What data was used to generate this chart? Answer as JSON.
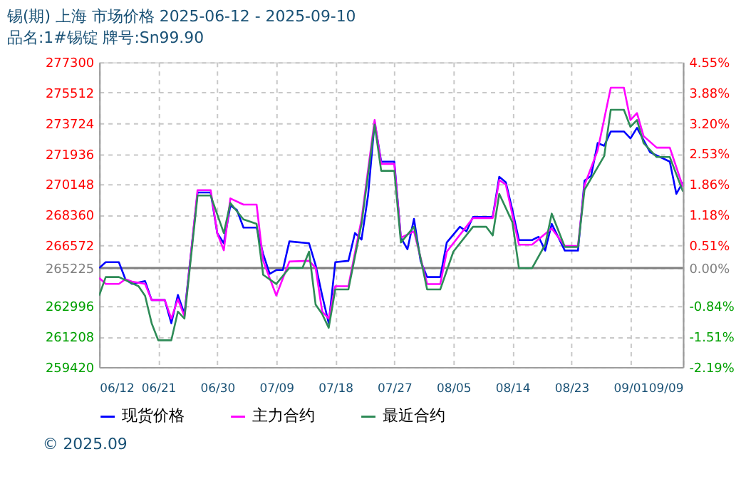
{
  "chart_data": {
    "type": "line",
    "title": "锡(期) 上海 市场价格 2025-06-12 - 2025-09-10",
    "subtitle": "品名:1#锡锭 牌号:Sn99.90",
    "annotations": [
      "© 2025.09"
    ],
    "xlim": [
      "2025-06-12",
      "2025-09-09"
    ],
    "xticks": [
      {
        "value": "2025-06-12",
        "label": "06/12"
      },
      {
        "value": "2025-06-21",
        "label": "06/21"
      },
      {
        "value": "2025-06-30",
        "label": "06/30"
      },
      {
        "value": "2025-07-09",
        "label": "07/09"
      },
      {
        "value": "2025-07-18",
        "label": "07/18"
      },
      {
        "value": "2025-07-27",
        "label": "07/27"
      },
      {
        "value": "2025-08-05",
        "label": "08/05"
      },
      {
        "value": "2025-08-14",
        "label": "08/14"
      },
      {
        "value": "2025-08-23",
        "label": "08/23"
      },
      {
        "value": "2025-09-01",
        "label": "09/01"
      },
      {
        "value": "2025-09-09",
        "label": "09/09"
      }
    ],
    "ylim": [
      259420,
      277300
    ],
    "yticks": [
      259420,
      261208,
      262996,
      265225,
      266572,
      268360,
      270148,
      271936,
      273724,
      275512,
      277300
    ],
    "y2lim": [
      -2.19,
      4.55
    ],
    "y2ticks": [
      {
        "value": -2.19,
        "label": "-2.19%"
      },
      {
        "value": -1.51,
        "label": "-1.51%"
      },
      {
        "value": -0.84,
        "label": "-0.84%"
      },
      {
        "value": 0,
        "label": "0.00%"
      },
      {
        "value": 0.51,
        "label": "0.51%"
      },
      {
        "value": 1.18,
        "label": "1.18%"
      },
      {
        "value": 1.86,
        "label": "1.86%"
      },
      {
        "value": 2.53,
        "label": "2.53%"
      },
      {
        "value": 3.2,
        "label": "3.20%"
      },
      {
        "value": 3.88,
        "label": "3.88%"
      },
      {
        "value": 4.55,
        "label": "4.55%"
      }
    ],
    "ref_lines": [
      {
        "axis": "y",
        "value": 265225,
        "color": "#808080"
      }
    ],
    "grid": true,
    "legend": "bottom",
    "marker": "none",
    "line_style": "solid",
    "series": [
      {
        "name": "现货价格",
        "color": "#0000ff",
        "x": [
          "2025-06-12",
          "2025-06-13",
          "2025-06-15",
          "2025-06-16",
          "2025-06-17",
          "2025-06-19",
          "2025-06-20",
          "2025-06-22",
          "2025-06-23",
          "2025-06-24",
          "2025-06-25",
          "2025-06-27",
          "2025-06-29",
          "2025-06-30",
          "2025-07-01",
          "2025-07-02",
          "2025-07-03",
          "2025-07-04",
          "2025-07-06",
          "2025-07-07",
          "2025-07-08",
          "2025-07-09",
          "2025-07-10",
          "2025-07-11",
          "2025-07-14",
          "2025-07-15",
          "2025-07-16",
          "2025-07-17",
          "2025-07-18",
          "2025-07-20",
          "2025-07-21",
          "2025-07-22",
          "2025-07-23",
          "2025-07-24",
          "2025-07-25",
          "2025-07-27",
          "2025-07-28",
          "2025-07-29",
          "2025-07-30",
          "2025-07-31",
          "2025-08-01",
          "2025-08-03",
          "2025-08-04",
          "2025-08-06",
          "2025-08-07",
          "2025-08-08",
          "2025-08-11",
          "2025-08-12",
          "2025-08-13",
          "2025-08-14",
          "2025-08-15",
          "2025-08-17",
          "2025-08-18",
          "2025-08-19",
          "2025-08-20",
          "2025-08-22",
          "2025-08-24",
          "2025-08-25",
          "2025-08-26",
          "2025-08-27",
          "2025-08-28",
          "2025-08-29",
          "2025-08-31",
          "2025-09-01",
          "2025-09-02",
          "2025-09-04",
          "2025-09-07",
          "2025-09-08",
          "2025-09-09"
        ],
        "values": [
          265230,
          265570,
          265570,
          264570,
          264300,
          264460,
          263350,
          263350,
          261990,
          263650,
          262530,
          269660,
          269660,
          267280,
          266680,
          268900,
          268630,
          267600,
          267600,
          266060,
          264890,
          265110,
          265110,
          266790,
          266680,
          265400,
          263620,
          261990,
          265570,
          265650,
          267280,
          266900,
          269500,
          273780,
          271470,
          271470,
          267010,
          266330,
          268110,
          265650,
          264700,
          264700,
          266730,
          267650,
          267380,
          268230,
          268230,
          270580,
          270260,
          268630,
          266870,
          266870,
          267060,
          266250,
          267820,
          266250,
          266250,
          270360,
          270630,
          272560,
          272400,
          273240,
          273240,
          272830,
          273450,
          272020,
          271470,
          269580,
          270260
        ]
      },
      {
        "name": "主力合约",
        "color": "#ff00ff",
        "x": [
          "2025-06-12",
          "2025-06-13",
          "2025-06-15",
          "2025-06-16",
          "2025-06-17",
          "2025-06-19",
          "2025-06-20",
          "2025-06-22",
          "2025-06-23",
          "2025-06-24",
          "2025-06-25",
          "2025-06-27",
          "2025-06-29",
          "2025-06-30",
          "2025-07-01",
          "2025-07-02",
          "2025-07-04",
          "2025-07-06",
          "2025-07-07",
          "2025-07-09",
          "2025-07-11",
          "2025-07-14",
          "2025-07-15",
          "2025-07-16",
          "2025-07-17",
          "2025-07-18",
          "2025-07-20",
          "2025-07-22",
          "2025-07-24",
          "2025-07-25",
          "2025-07-27",
          "2025-07-28",
          "2025-07-30",
          "2025-08-01",
          "2025-08-03",
          "2025-08-04",
          "2025-08-08",
          "2025-08-11",
          "2025-08-12",
          "2025-08-13",
          "2025-08-15",
          "2025-08-17",
          "2025-08-20",
          "2025-08-22",
          "2025-08-24",
          "2025-08-25",
          "2025-08-27",
          "2025-08-29",
          "2025-08-31",
          "2025-09-01",
          "2025-09-02",
          "2025-09-03",
          "2025-09-05",
          "2025-09-07",
          "2025-09-09"
        ],
        "values": [
          264650,
          264300,
          264300,
          264570,
          264430,
          264300,
          263350,
          263350,
          262260,
          263400,
          262400,
          269800,
          269800,
          267280,
          266270,
          269310,
          268950,
          268950,
          265650,
          263620,
          265610,
          265650,
          265240,
          262670,
          262260,
          264160,
          264160,
          268080,
          273910,
          271340,
          271340,
          267010,
          267380,
          264290,
          264290,
          266190,
          268160,
          268160,
          270390,
          270120,
          266600,
          266600,
          267550,
          266520,
          266520,
          270090,
          272130,
          275810,
          275810,
          273910,
          274320,
          272970,
          272290,
          272290,
          269990
        ]
      },
      {
        "name": "最近合约",
        "color": "#2e8b57",
        "x": [
          "2025-06-12",
          "2025-06-13",
          "2025-06-15",
          "2025-06-18",
          "2025-06-19",
          "2025-06-20",
          "2025-06-21",
          "2025-06-23",
          "2025-06-24",
          "2025-06-25",
          "2025-06-27",
          "2025-06-29",
          "2025-07-01",
          "2025-07-02",
          "2025-07-04",
          "2025-07-06",
          "2025-07-07",
          "2025-07-09",
          "2025-07-11",
          "2025-07-13",
          "2025-07-14",
          "2025-07-15",
          "2025-07-16",
          "2025-07-17",
          "2025-07-18",
          "2025-07-20",
          "2025-07-22",
          "2025-07-24",
          "2025-07-25",
          "2025-07-27",
          "2025-07-28",
          "2025-07-30",
          "2025-08-01",
          "2025-08-03",
          "2025-08-05",
          "2025-08-08",
          "2025-08-10",
          "2025-08-11",
          "2025-08-12",
          "2025-08-14",
          "2025-08-15",
          "2025-08-17",
          "2025-08-19",
          "2025-08-20",
          "2025-08-22",
          "2025-08-24",
          "2025-08-25",
          "2025-08-28",
          "2025-08-29",
          "2025-08-31",
          "2025-09-01",
          "2025-09-02",
          "2025-09-03",
          "2025-09-05",
          "2025-09-07",
          "2025-09-09"
        ],
        "values": [
          263620,
          264700,
          264700,
          264160,
          263600,
          261990,
          260990,
          260990,
          262670,
          262260,
          269480,
          269480,
          267280,
          269040,
          268080,
          267820,
          264830,
          264290,
          265240,
          265240,
          266190,
          263080,
          262530,
          261720,
          263970,
          263970,
          267820,
          273640,
          270930,
          270930,
          266730,
          267650,
          263970,
          263970,
          266190,
          267650,
          267650,
          267140,
          269580,
          267920,
          265220,
          265220,
          266600,
          268420,
          266460,
          266460,
          269820,
          271800,
          274510,
          274510,
          273510,
          273910,
          272560,
          271740,
          271740,
          269720
        ]
      }
    ]
  }
}
